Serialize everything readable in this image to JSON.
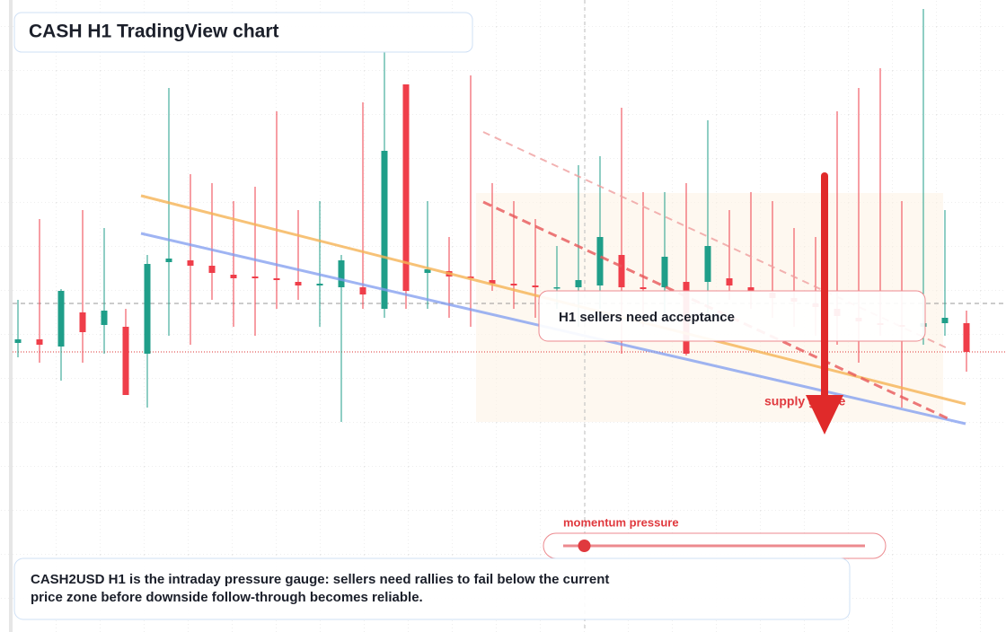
{
  "chart_data": {
    "type": "candlestick",
    "title": "CASH H1 TradingView chart",
    "annotation": "H1 sellers need acceptance",
    "zone_label": "supply gauge",
    "caption": "CASH2USD H1 is the intraday pressure gauge: sellers need rallies to fail below the current price zone before downside follow-through becomes reliable.",
    "momentum": {
      "label": "momentum pressure",
      "value": 7,
      "range": [
        0,
        100
      ]
    },
    "up_color": "#1f9e89",
    "down_color": "#ef3e4a",
    "ylim": [
      0,
      704
    ],
    "open": [
      322,
      326,
      318,
      356,
      342,
      340,
      310,
      412,
      414,
      408,
      398,
      396,
      394,
      390,
      386,
      384,
      384,
      360,
      610,
      400,
      402,
      396,
      392,
      388,
      386,
      384,
      384,
      386,
      420,
      384,
      384,
      390,
      390,
      394,
      384,
      378,
      372,
      366,
      360,
      350,
      344,
      342,
      340,
      344,
      344
    ],
    "high": [
      370,
      460,
      382,
      470,
      450,
      360,
      420,
      606,
      510,
      500,
      480,
      496,
      580,
      470,
      480,
      420,
      590,
      646,
      610,
      480,
      440,
      620,
      500,
      480,
      460,
      430,
      520,
      530,
      584,
      490,
      490,
      500,
      570,
      470,
      490,
      480,
      450,
      440,
      580,
      606,
      628,
      480,
      694,
      470,
      358
    ],
    "low": [
      306,
      300,
      280,
      300,
      310,
      264,
      250,
      330,
      320,
      370,
      340,
      330,
      360,
      370,
      340,
      234,
      360,
      350,
      360,
      360,
      350,
      340,
      380,
      360,
      350,
      360,
      340,
      360,
      310,
      340,
      350,
      308,
      350,
      370,
      360,
      350,
      340,
      330,
      320,
      300,
      330,
      250,
      320,
      330,
      290
    ],
    "close": [
      326,
      320,
      380,
      334,
      358,
      264,
      410,
      416,
      408,
      400,
      394,
      394,
      392,
      386,
      388,
      414,
      376,
      536,
      380,
      404,
      396,
      394,
      388,
      386,
      384,
      384,
      392,
      440,
      384,
      382,
      418,
      310,
      430,
      386,
      380,
      372,
      368,
      362,
      352,
      346,
      342,
      340,
      344,
      350,
      312
    ]
  }
}
